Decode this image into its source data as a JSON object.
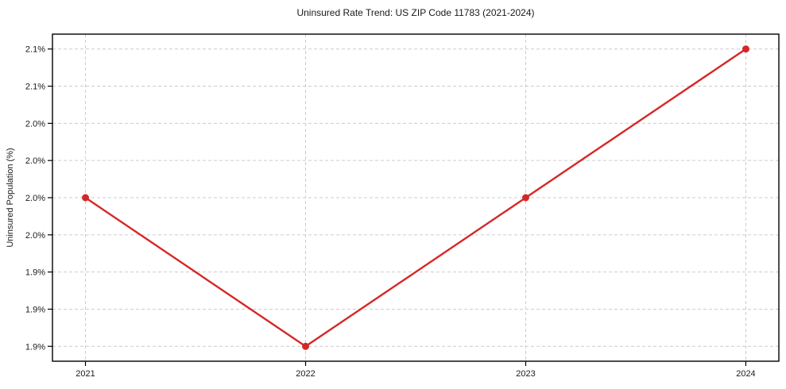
{
  "title": "Uninsured Rate Trend: US ZIP Code 11783 (2021-2024)",
  "colors": {
    "line": "#d62728",
    "marker": "#d62728",
    "grid": "#cccccc",
    "axis_border": "#000000",
    "tick": "#000000",
    "text": "#1a1a1a",
    "background": "#ffffff",
    "plot_background": "#ffffff"
  },
  "chart_data": {
    "type": "line",
    "title": "Uninsured Rate Trend: US ZIP Code 11783 (2021-2024)",
    "xlabel": "",
    "ylabel": "Uninsured Population (%)",
    "x": [
      2021,
      2022,
      2023,
      2024
    ],
    "x_tick_labels": [
      "2021",
      "2022",
      "2023",
      "2024"
    ],
    "series": [
      {
        "name": "Uninsured Population (%)",
        "values": [
          2.0,
          1.9,
          2.0,
          2.1
        ]
      }
    ],
    "y_ticks": [
      1.9,
      1.925,
      1.95,
      1.975,
      2.0,
      2.025,
      2.05,
      2.075,
      2.1
    ],
    "y_tick_labels": [
      "1.9%",
      "1.9%",
      "1.9%",
      "2.0%",
      "2.0%",
      "2.0%",
      "2.0%",
      "2.1%",
      "2.1%"
    ],
    "xlim": [
      2020.85,
      2024.15
    ],
    "ylim": [
      1.89,
      2.11
    ],
    "grid": true,
    "grid_style": "dashed",
    "legend": "none",
    "line_width": 2.4,
    "marker_radius": 4.5
  }
}
